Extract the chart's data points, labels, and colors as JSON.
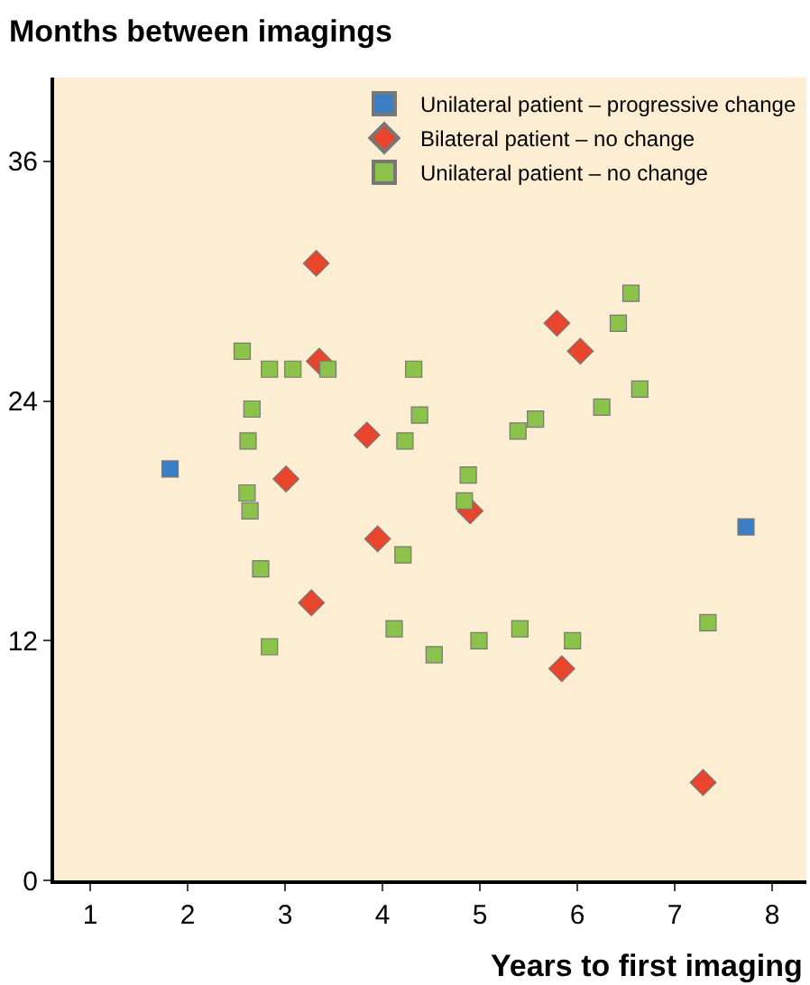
{
  "chart_data": {
    "type": "scatter",
    "xlabel": "Years to first imaging",
    "ylabel": "Months between imagings",
    "xlim": [
      0.63,
      8.35
    ],
    "ylim": [
      0,
      40.2
    ],
    "xticks": [
      1,
      2,
      3,
      4,
      5,
      6,
      7,
      8
    ],
    "yticks": [
      0,
      12,
      24,
      36
    ],
    "grid": false,
    "legend": "top right",
    "series": [
      {
        "name": "Unilateral patient – progressive change",
        "color": "#3a7fc4",
        "marker": "square",
        "x": [
          1.82,
          7.73
        ],
        "values": [
          20.6,
          17.7
        ]
      },
      {
        "name": "Bilateral patient – no change",
        "color": "#e8452c",
        "marker": "diamond",
        "x": [
          3.32,
          3.35,
          3.84,
          3.01,
          3.95,
          3.27,
          5.79,
          6.03,
          4.9,
          5.84,
          7.29
        ],
        "values": [
          30.9,
          26.0,
          22.3,
          20.1,
          17.1,
          13.9,
          27.9,
          26.5,
          18.5,
          10.6,
          4.9
        ]
      },
      {
        "name": "Unilateral patient – no change",
        "color": "#8bc34a",
        "marker": "square",
        "x": [
          2.56,
          2.84,
          3.08,
          3.44,
          2.66,
          2.62,
          2.61,
          2.64,
          2.75,
          2.84,
          4.23,
          4.32,
          4.38,
          4.21,
          4.12,
          4.53,
          4.88,
          4.84,
          4.99,
          5.41,
          5.39,
          5.57,
          5.95,
          6.25,
          6.42,
          6.55,
          6.64,
          7.34
        ],
        "values": [
          26.5,
          25.6,
          25.6,
          25.6,
          23.6,
          22.0,
          19.4,
          18.5,
          15.6,
          11.7,
          22.0,
          25.6,
          23.3,
          16.3,
          12.6,
          11.3,
          20.3,
          19.0,
          12.0,
          12.6,
          22.5,
          23.1,
          12.0,
          23.7,
          27.9,
          29.4,
          24.6,
          12.9
        ]
      }
    ]
  }
}
